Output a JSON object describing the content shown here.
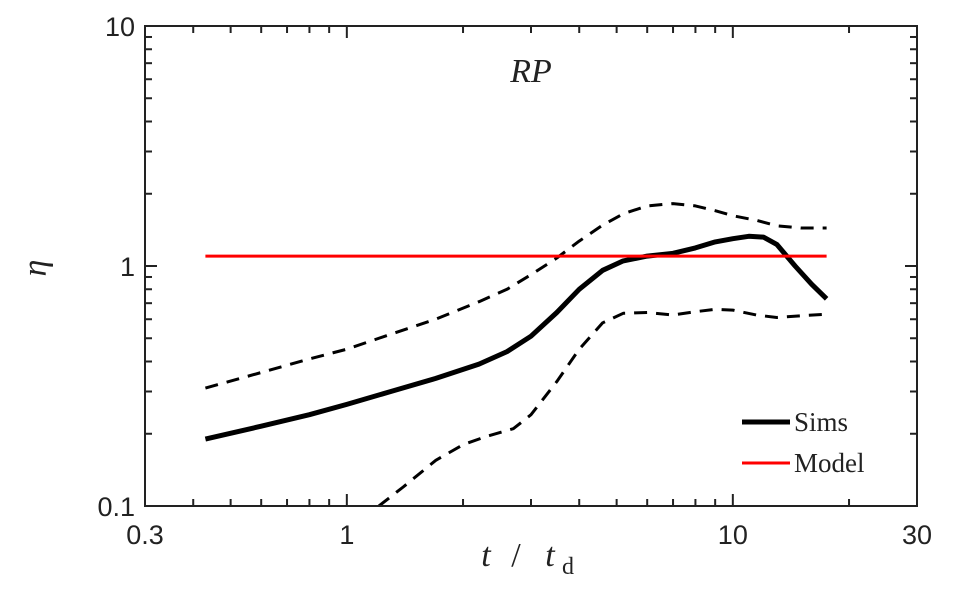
{
  "chart_data": {
    "type": "line",
    "title": "RP",
    "xlabel": {
      "var": "t",
      "sep": "/",
      "sub_var": "t",
      "sub": "d"
    },
    "ylabel": "η",
    "xscale": "log",
    "yscale": "log",
    "xlim": [
      0.3,
      30
    ],
    "ylim": [
      0.1,
      10
    ],
    "xticks": [
      {
        "value": 0.3,
        "label": "0.3"
      },
      {
        "value": 1,
        "label": "1"
      },
      {
        "value": 10,
        "label": "10"
      },
      {
        "value": 30,
        "label": "30"
      }
    ],
    "yticks": [
      {
        "value": 0.1,
        "label": "0.1"
      },
      {
        "value": 1,
        "label": "1"
      },
      {
        "value": 10,
        "label": "10"
      }
    ],
    "grid": false,
    "legend_position": "bottom-right",
    "series": [
      {
        "name": "Sims",
        "in_legend": true,
        "color": "#000000",
        "style": "solid",
        "width": "thick",
        "x": [
          0.43,
          0.6,
          0.8,
          1.0,
          1.3,
          1.7,
          2.2,
          2.6,
          3.0,
          3.5,
          4.0,
          4.6,
          5.2,
          6.0,
          7.0,
          8.0,
          9.0,
          10.0,
          11.0,
          12.0,
          13.0,
          14.5,
          16.0,
          17.5
        ],
        "y": [
          0.19,
          0.215,
          0.24,
          0.265,
          0.3,
          0.34,
          0.39,
          0.44,
          0.51,
          0.64,
          0.8,
          0.96,
          1.05,
          1.1,
          1.13,
          1.19,
          1.26,
          1.3,
          1.33,
          1.32,
          1.23,
          1.0,
          0.84,
          0.73
        ]
      },
      {
        "name": "Upper bound",
        "in_legend": false,
        "color": "#000000",
        "style": "dashed",
        "width": "normal",
        "x": [
          0.43,
          0.6,
          0.8,
          1.0,
          1.3,
          1.7,
          2.2,
          2.6,
          3.0,
          3.5,
          4.0,
          4.6,
          5.2,
          6.0,
          7.0,
          8.0,
          9.0,
          10.0,
          11.5,
          13.0,
          15.0,
          17.5
        ],
        "y": [
          0.31,
          0.36,
          0.41,
          0.45,
          0.52,
          0.6,
          0.71,
          0.8,
          0.92,
          1.08,
          1.27,
          1.48,
          1.65,
          1.78,
          1.82,
          1.78,
          1.7,
          1.62,
          1.55,
          1.47,
          1.44,
          1.44
        ]
      },
      {
        "name": "Lower bound",
        "in_legend": false,
        "color": "#000000",
        "style": "dashed",
        "width": "normal",
        "x": [
          1.21,
          1.4,
          1.7,
          2.0,
          2.3,
          2.7,
          3.0,
          3.5,
          4.0,
          4.6,
          5.2,
          6.0,
          7.0,
          8.0,
          9.0,
          10.0,
          11.5,
          13.0,
          15.0,
          17.5
        ],
        "y": [
          0.1,
          0.12,
          0.155,
          0.18,
          0.195,
          0.21,
          0.24,
          0.33,
          0.45,
          0.58,
          0.635,
          0.64,
          0.625,
          0.645,
          0.66,
          0.655,
          0.625,
          0.61,
          0.62,
          0.63
        ]
      },
      {
        "name": "Model",
        "in_legend": true,
        "color": "#ff0000",
        "style": "solid",
        "width": "normal",
        "x": [
          0.43,
          17.5
        ],
        "y": [
          1.1,
          1.1
        ]
      }
    ]
  }
}
